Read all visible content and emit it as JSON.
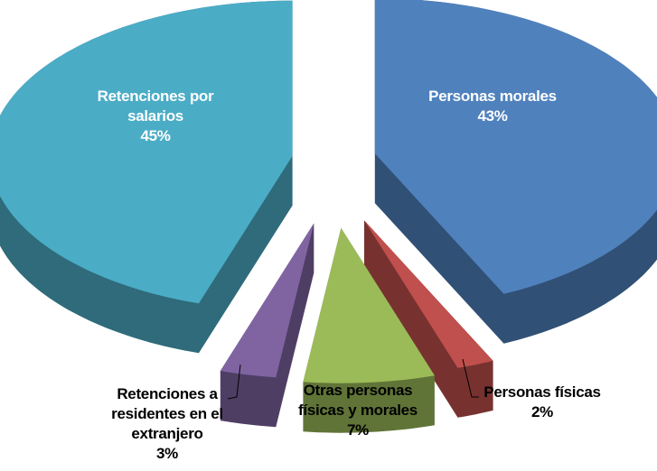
{
  "chart_data": {
    "type": "pie",
    "categories": [
      "Personas morales",
      "Personas físicas",
      "Otras personas físicas y morales",
      "Retenciones a residentes en el extranjero",
      "Retenciones por salarios"
    ],
    "values": [
      43,
      2,
      7,
      3,
      45
    ],
    "value_labels": [
      "43%",
      "2%",
      "7%",
      "3%",
      "45%"
    ],
    "colors": [
      "#4f81bd",
      "#c0504d",
      "#9bbb59",
      "#8064a2",
      "#4bacc6"
    ]
  }
}
